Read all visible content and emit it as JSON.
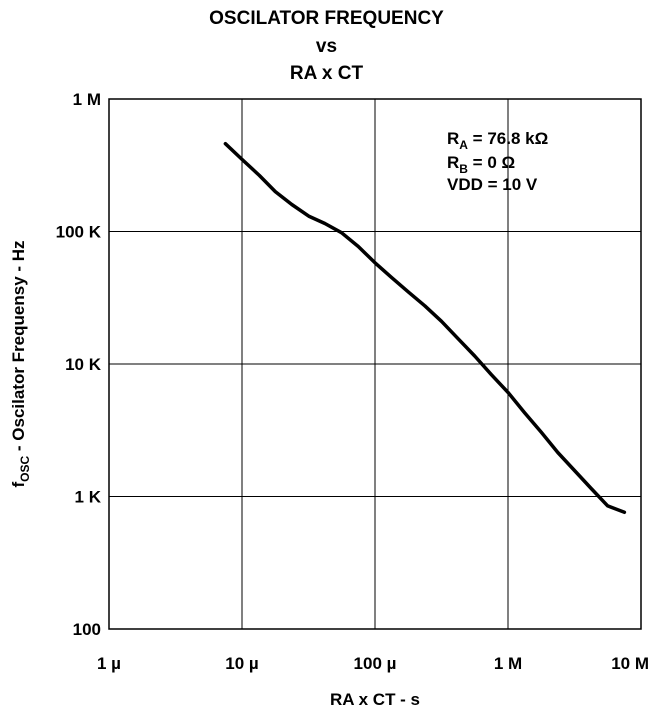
{
  "chart_data": {
    "type": "line",
    "title_lines": [
      "OSCILATOR FREQUENCY",
      "vs",
      "RA x CT"
    ],
    "xlabel": "RA x CT - s",
    "ylabel": {
      "main": "f",
      "sub": "OSC",
      "rest": " - Oscilator Frequensy - Hz"
    },
    "x_scale": "log",
    "y_scale": "log",
    "xlim": [
      1e-06,
      10
    ],
    "ylim": [
      100,
      1000000
    ],
    "grid": true,
    "x_ticks": [
      {
        "value": 1e-06,
        "label": "1 µ"
      },
      {
        "value": 1e-05,
        "label": "10 µ"
      },
      {
        "value": 0.0001,
        "label": "100 µ"
      },
      {
        "value": 1,
        "label": "1 M"
      },
      {
        "value": 10,
        "label": "10 M"
      }
    ],
    "y_ticks": [
      {
        "value": 1000000,
        "label": "1 M"
      },
      {
        "value": 100000,
        "label": "100 K"
      },
      {
        "value": 10000,
        "label": "10 K"
      },
      {
        "value": 1000,
        "label": "1 K"
      },
      {
        "value": 100,
        "label": "100"
      }
    ],
    "annotations": [
      {
        "main": "R",
        "sub": "A",
        "rest": " = 76.8 kΩ"
      },
      {
        "main": "R",
        "sub": "B",
        "rest": " = 0 Ω"
      },
      {
        "main": "VDD = 10 V",
        "sub": "",
        "rest": ""
      }
    ],
    "series": [
      {
        "x": [
          7.5e-06,
          1e-05,
          1.35e-05,
          1.78e-05,
          2.37e-05,
          3.2e-05,
          4.2e-05,
          5.6e-05,
          7.49e-05,
          0.0001,
          0.000133,
          0.000178,
          0.000237,
          0.000316,
          0.000422,
          0.000562,
          0.00075,
          1,
          1.33,
          1.78,
          2.37,
          3.16,
          4.22,
          5.62,
          7.5
        ],
        "y": [
          460000,
          350000,
          265000,
          200000,
          160000,
          130000,
          115000,
          98000,
          77000,
          58000,
          45000,
          35000,
          27500,
          21000,
          15500,
          11500,
          8300,
          6100,
          4300,
          3050,
          2150,
          1570,
          1150,
          850,
          760
        ]
      }
    ]
  }
}
